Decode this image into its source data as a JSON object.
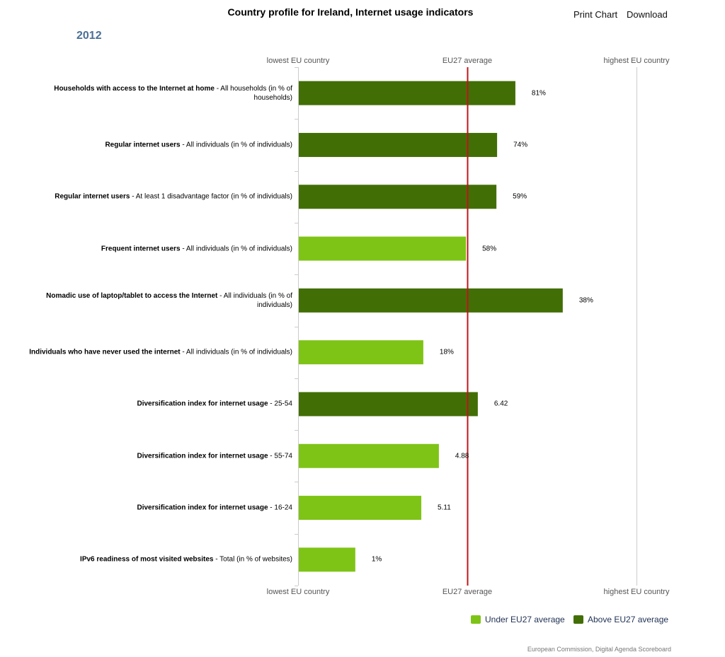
{
  "header": {
    "title": "Country profile for Ireland, Internet usage indicators",
    "print_label": "Print Chart",
    "download_label": "Download",
    "year": "2012"
  },
  "colors": {
    "under": "#7ec416",
    "above": "#426e06",
    "average_line": "#c0141a"
  },
  "chart_data": {
    "type": "bar",
    "orientation": "horizontal",
    "title": "Country profile for Ireland, Internet usage indicators",
    "scale_labels": {
      "low": "lowest EU country",
      "mid": "EU27 average",
      "high": "highest EU country"
    },
    "scale_note": "bar position between lowest EU country (0) and highest EU country (1); EU27 average at 0.5",
    "categories": [
      {
        "bold": "Households with access to the Internet at home",
        "rest": " - All households (in % of households)",
        "value_label": "81%",
        "position": 0.64,
        "group": "above"
      },
      {
        "bold": "Regular internet users",
        "rest": " - All individuals (in % of individuals)",
        "value_label": "74%",
        "position": 0.586,
        "group": "above"
      },
      {
        "bold": "Regular internet users",
        "rest": " - At least 1 disadvantage factor (in % of individuals)",
        "value_label": "59%",
        "position": 0.584,
        "group": "above"
      },
      {
        "bold": "Frequent internet users",
        "rest": " - All individuals (in % of individuals)",
        "value_label": "58%",
        "position": 0.494,
        "group": "under"
      },
      {
        "bold": "Nomadic use of laptop/tablet to access the Internet",
        "rest": " - All individuals (in % of individuals)",
        "value_label": "38%",
        "position": 0.78,
        "group": "above"
      },
      {
        "bold": "Individuals who have never used the internet",
        "rest": " - All individuals (in % of individuals)",
        "value_label": "18%",
        "position": 0.368,
        "group": "under"
      },
      {
        "bold": "Diversification index for internet usage",
        "rest": " - 25-54",
        "value_label": "6.42",
        "position": 0.529,
        "group": "above"
      },
      {
        "bold": "Diversification index for internet usage",
        "rest": " - 55-74",
        "value_label": "4.88",
        "position": 0.414,
        "group": "under"
      },
      {
        "bold": "Diversification index for internet usage",
        "rest": " - 16-24",
        "value_label": "5.11",
        "position": 0.362,
        "group": "under"
      },
      {
        "bold": "IPv6 readiness of most visited websites",
        "rest": " - Total (in % of websites)",
        "value_label": "1%",
        "position": 0.167,
        "group": "under"
      }
    ],
    "legend": {
      "placement": "bottom-right",
      "under": "Under EU27 average",
      "above": "Above EU27 average"
    }
  },
  "footer": {
    "credit": "European Commission, Digital Agenda Scoreboard"
  }
}
